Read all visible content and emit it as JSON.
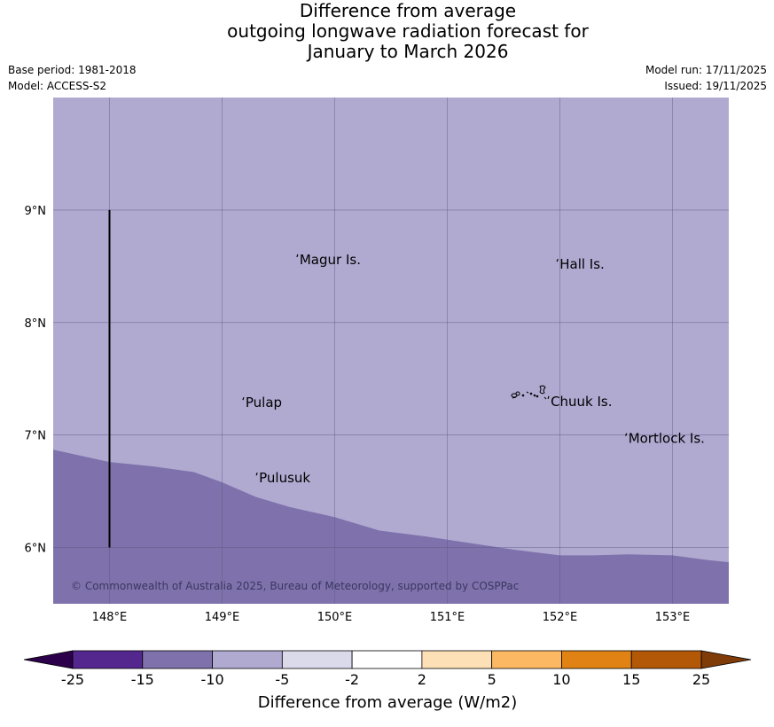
{
  "title": {
    "line1": "Difference from average",
    "line2": "outgoing longwave radiation forecast for",
    "line3": "January to March 2026"
  },
  "meta": {
    "base_period": "Base period: 1981-2018",
    "model": "Model: ACCESS-S2",
    "model_run": "Model run: 17/11/2025",
    "issued": "Issued: 19/11/2025"
  },
  "map": {
    "lon_range": [
      147.5,
      153.5
    ],
    "lat_range": [
      5.5,
      10.0
    ],
    "lon_ticks": [
      {
        "value": 148,
        "label": "148°E"
      },
      {
        "value": 149,
        "label": "149°E"
      },
      {
        "value": 150,
        "label": "150°E"
      },
      {
        "value": 151,
        "label": "151°E"
      },
      {
        "value": 152,
        "label": "152°E"
      },
      {
        "value": 153,
        "label": "153°E"
      }
    ],
    "lat_ticks": [
      {
        "value": 9,
        "label": "9°N"
      },
      {
        "value": 8,
        "label": "8°N"
      },
      {
        "value": 7,
        "label": "7°N"
      },
      {
        "value": 6,
        "label": "6°N"
      }
    ],
    "background_band_color": "#b0aad1",
    "lower_band_color": "#7f72ac",
    "boundary": [
      [
        147.5,
        6.87
      ],
      [
        148.0,
        6.76
      ],
      [
        148.4,
        6.72
      ],
      [
        148.75,
        6.67
      ],
      [
        149.0,
        6.58
      ],
      [
        149.3,
        6.45
      ],
      [
        149.6,
        6.36
      ],
      [
        150.0,
        6.27
      ],
      [
        150.4,
        6.15
      ],
      [
        150.8,
        6.1
      ],
      [
        151.2,
        6.04
      ],
      [
        151.6,
        5.98
      ],
      [
        152.0,
        5.93
      ],
      [
        152.3,
        5.93
      ],
      [
        152.6,
        5.94
      ],
      [
        153.0,
        5.93
      ],
      [
        153.3,
        5.89
      ],
      [
        153.5,
        5.87
      ]
    ],
    "meridian_line": {
      "lon": 148.0,
      "lat_from": 6.0,
      "lat_to": 9.0
    },
    "places": [
      {
        "name": "Magur Is.",
        "lon": 149.68,
        "lat": 8.55
      },
      {
        "name": "Hall Is.",
        "lon": 151.99,
        "lat": 8.51
      },
      {
        "name": "Pulap",
        "lon": 149.2,
        "lat": 7.28
      },
      {
        "name": "Chuuk Is.",
        "lon": 151.91,
        "lat": 7.29
      },
      {
        "name": "Mortlock Is.",
        "lon": 152.6,
        "lat": 6.96
      },
      {
        "name": "Pulusuk",
        "lon": 149.32,
        "lat": 6.61
      }
    ],
    "copyright": "© Commonwealth of Australia 2025, Bureau of Meteorology, supported by COSPPac"
  },
  "legend": {
    "title": "Difference from average (W/m2)",
    "labels": [
      "-25",
      "-15",
      "-10",
      "-5",
      "-2",
      "2",
      "5",
      "10",
      "15",
      "25"
    ],
    "colors": [
      "#54278f",
      "#7f72ac",
      "#b0aad1",
      "#dadaeb",
      "#ffffff",
      "#fde0b6",
      "#fdb863",
      "#e08214",
      "#b35806"
    ],
    "extend_low_color": "#2d004b",
    "extend_high_color": "#7f3b08"
  }
}
